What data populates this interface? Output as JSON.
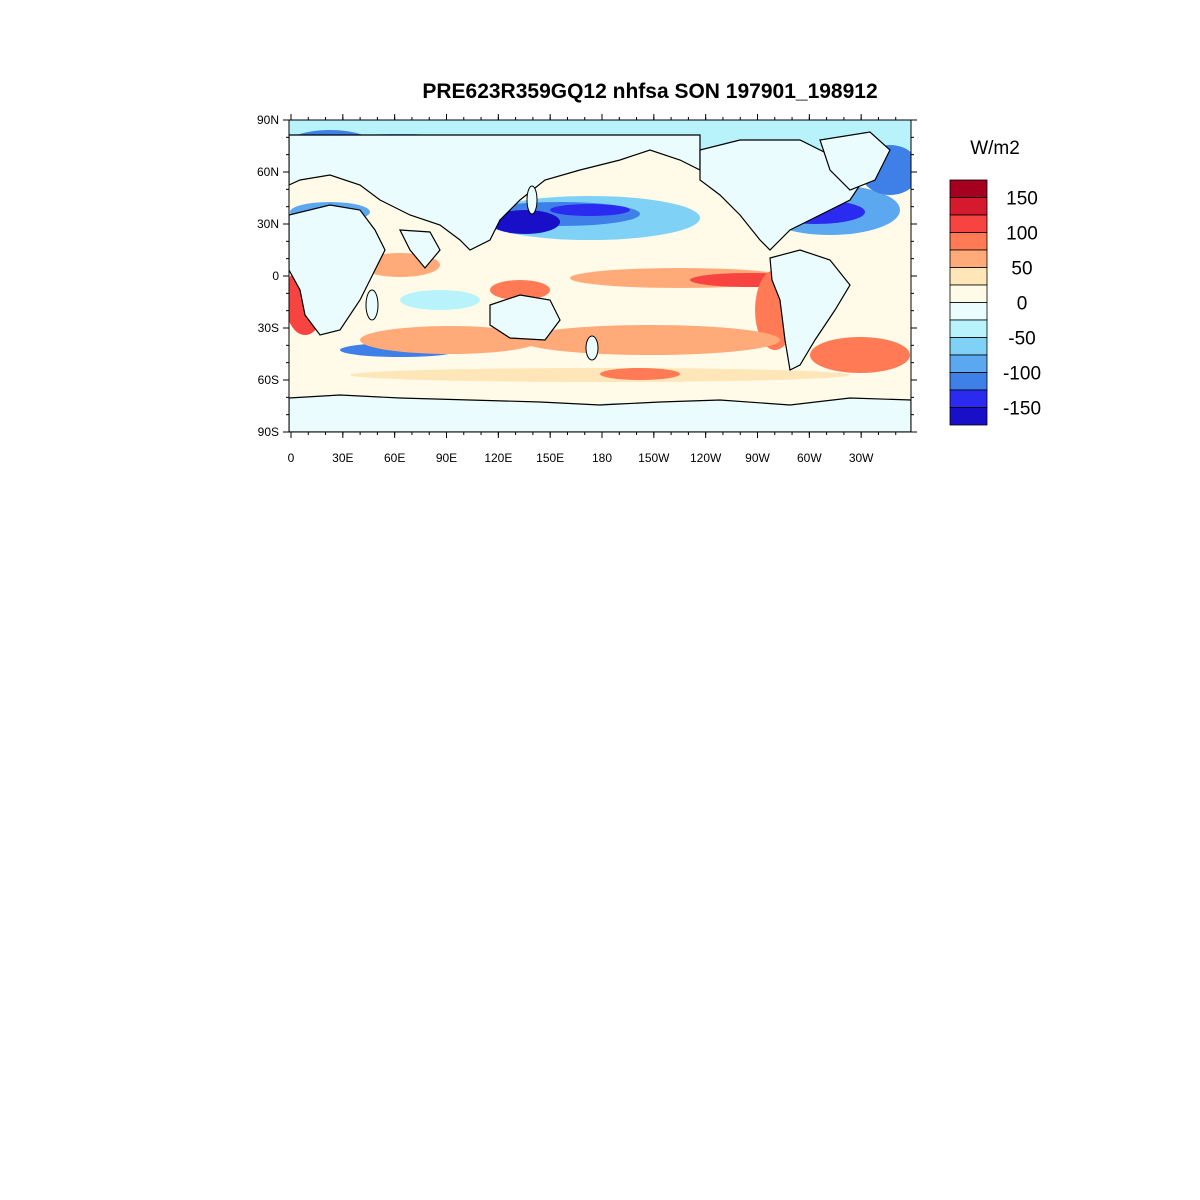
{
  "title": "PRE623R359GQ12 nhfsa SON 197901_198912",
  "colorbar": {
    "units": "W/m2",
    "levels": [
      -175,
      -150,
      -125,
      -100,
      -75,
      -50,
      -25,
      0,
      25,
      50,
      75,
      100,
      125,
      150,
      175
    ],
    "colors": [
      "#1a0fc9",
      "#2a2af0",
      "#3f7fe8",
      "#5ca8f0",
      "#7fd1f5",
      "#b8f2fa",
      "#eafcfd",
      "#fffbe8",
      "#ffe6b8",
      "#ffaa78",
      "#ff7a55",
      "#f74440",
      "#d41a2c",
      "#a5001f"
    ],
    "tick_labels": [
      "150",
      "100",
      "50",
      "0",
      "-50",
      "-100",
      "-150"
    ]
  },
  "axes": {
    "y_ticks": [
      "90N",
      "60N",
      "30N",
      "0",
      "30S",
      "60S",
      "90S"
    ],
    "x_ticks": [
      "0",
      "30E",
      "60E",
      "90E",
      "120E",
      "150E",
      "180",
      "150W",
      "120W",
      "90W",
      "60W",
      "30W"
    ]
  },
  "map": {
    "projection": "cylindrical equidistant",
    "lon_range": [
      0,
      360
    ],
    "lat_range": [
      -90,
      90
    ],
    "ocean_color": "#fffbe8",
    "land_color": "#eafcfd",
    "coastline_color": "#000000"
  }
}
